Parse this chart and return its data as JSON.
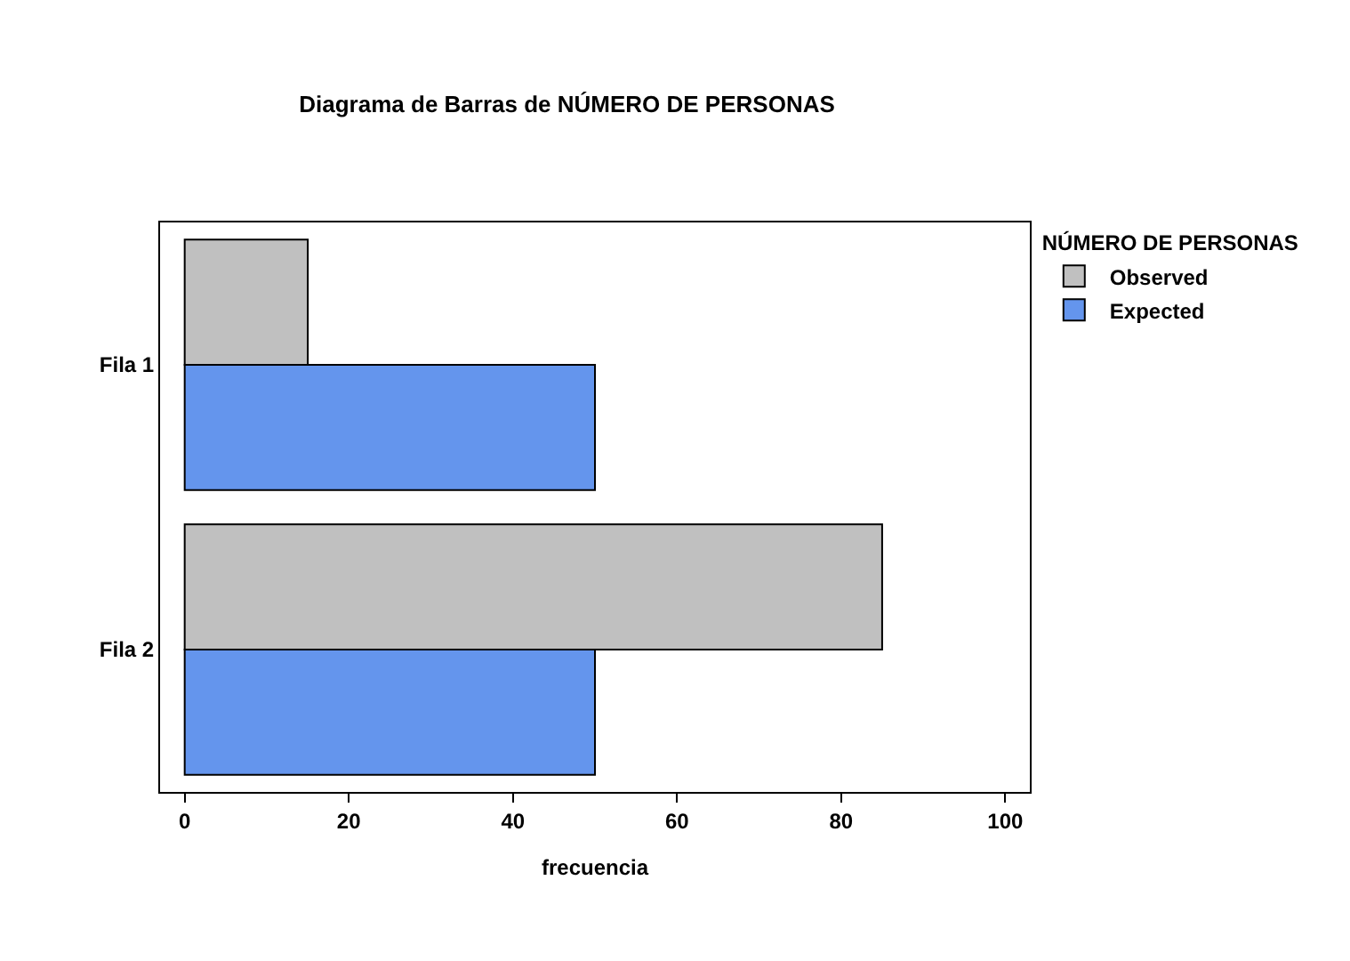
{
  "chart_data": {
    "type": "bar",
    "orientation": "horizontal",
    "title": "Diagrama de Barras de NÚMERO DE PERSONAS",
    "xlabel": "frecuencia",
    "legend_title": "NÚMERO DE PERSONAS",
    "categories": [
      "Fila 1",
      "Fila 2"
    ],
    "series": [
      {
        "name": "Observed",
        "color": "#c0c0c0",
        "values": [
          15,
          85
        ]
      },
      {
        "name": "Expected",
        "color": "#6495ed",
        "values": [
          50,
          50
        ]
      }
    ],
    "xlim": [
      -3,
      103
    ],
    "xticks": [
      0,
      20,
      40,
      60,
      80,
      100
    ],
    "legend": "top right"
  }
}
